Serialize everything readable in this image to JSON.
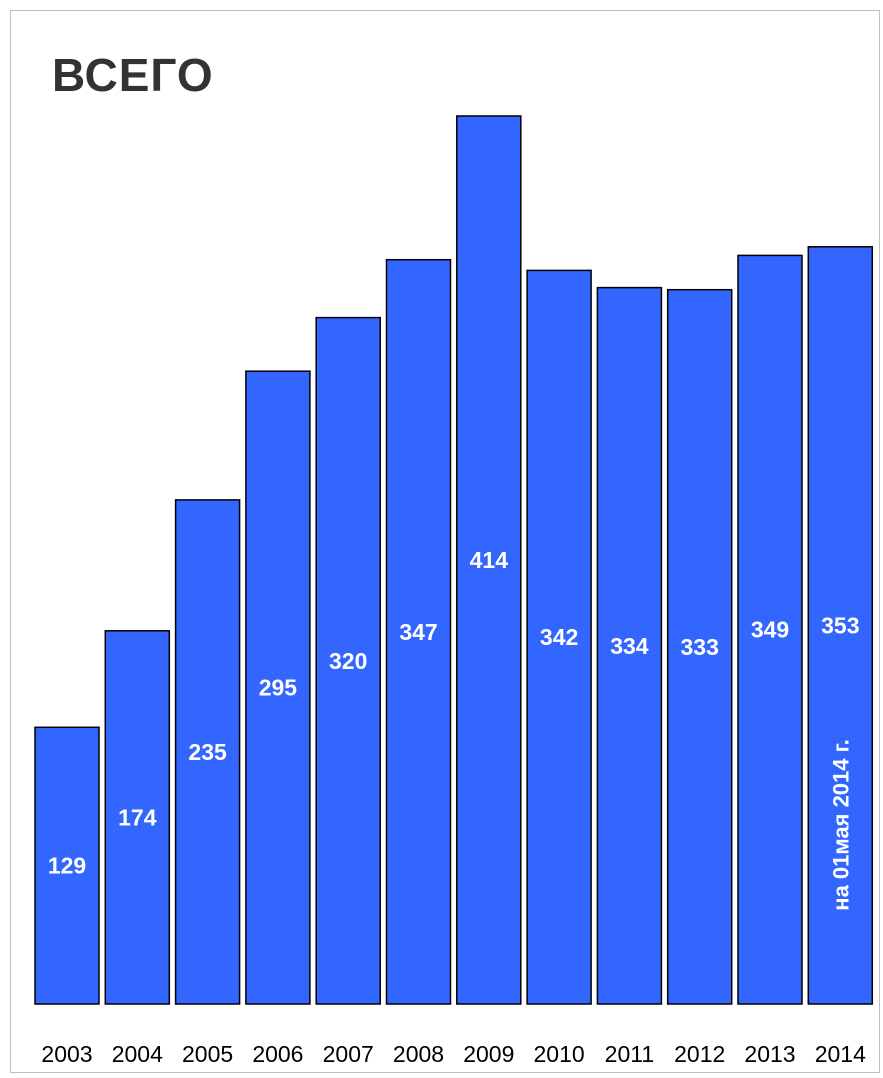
{
  "chart_data": {
    "type": "bar",
    "title": "ВСЕГО",
    "xlabel": "",
    "ylabel": "",
    "categories": [
      "2003",
      "2004",
      "2005",
      "2006",
      "2007",
      "2008",
      "2009",
      "2010",
      "2011",
      "2012",
      "2013",
      "2014"
    ],
    "values": [
      129,
      174,
      235,
      295,
      320,
      347,
      414,
      342,
      334,
      333,
      349,
      353
    ],
    "ylim": [
      0,
      414
    ],
    "grid": false,
    "bar_color": "#3366ff",
    "annotations": [
      {
        "category": "2014",
        "text": "на 01мая  2014 г."
      }
    ]
  }
}
